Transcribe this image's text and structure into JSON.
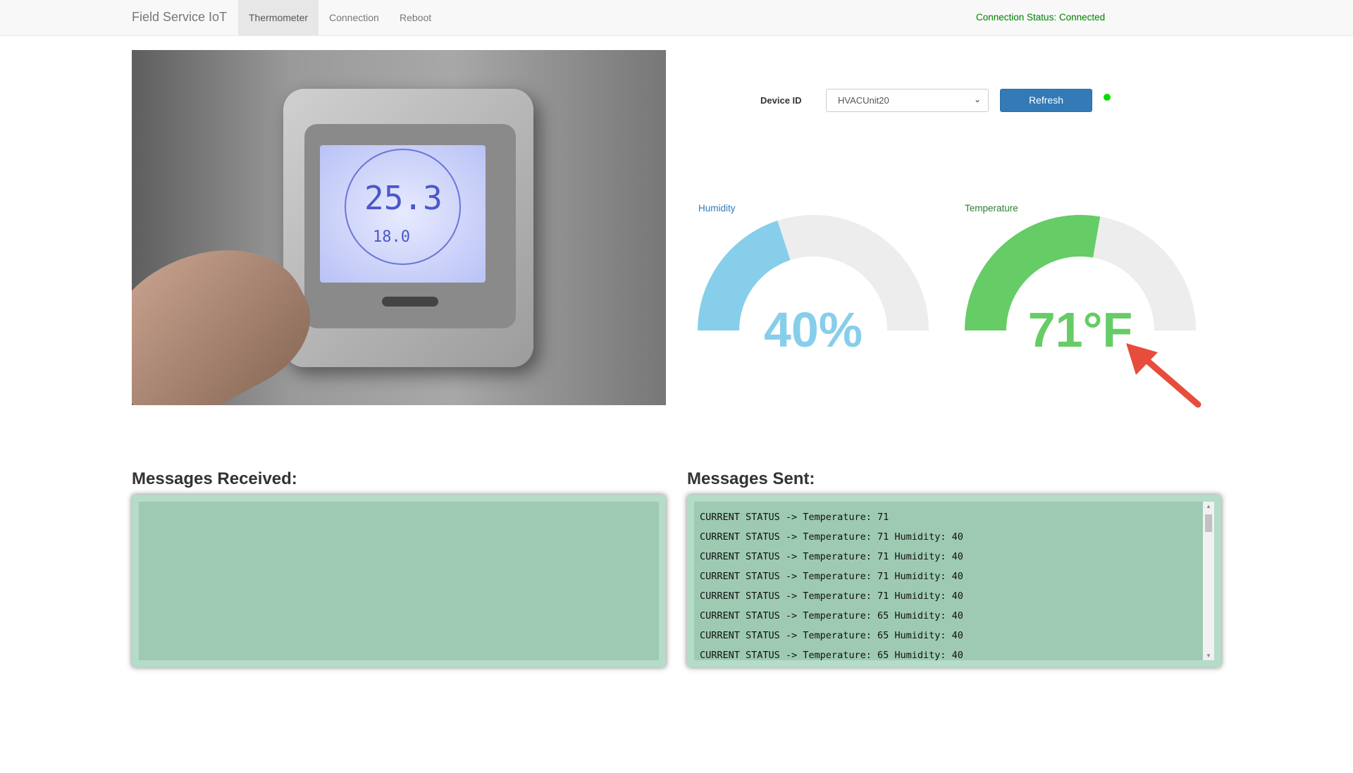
{
  "navbar": {
    "brand": "Field Service IoT",
    "tabs": [
      {
        "label": "Thermometer",
        "active": true
      },
      {
        "label": "Connection"
      },
      {
        "label": "Reboot"
      }
    ],
    "connection_status": "Connection Status: Connected"
  },
  "photo": {
    "display_main": "25.3",
    "display_set": "18.0"
  },
  "device": {
    "label": "Device ID",
    "selected": "HVACUnit20",
    "refresh_label": "Refresh",
    "indicator_color": "#00e000"
  },
  "gauges": [
    {
      "label": "Humidity",
      "value_text": "40%",
      "fill_fraction": 0.4,
      "color": "#87ceeb",
      "label_color": "#337ab7"
    },
    {
      "label": "Temperature",
      "value_text": "71°F",
      "fill_fraction": 0.555,
      "color": "#66cc66",
      "label_color": "#2e7d32"
    }
  ],
  "gauge_track_color": "#ededed",
  "annotation_arrow_color": "#e74c3c",
  "messages_received": {
    "title": "Messages Received:",
    "lines": []
  },
  "messages_sent": {
    "title": "Messages Sent:",
    "lines": [
      "CURRENT STATUS -> Temperature: 71",
      "CURRENT STATUS -> Temperature: 71 Humidity: 40",
      "CURRENT STATUS -> Temperature: 71 Humidity: 40",
      "CURRENT STATUS -> Temperature: 71 Humidity: 40",
      "CURRENT STATUS -> Temperature: 71 Humidity: 40",
      "CURRENT STATUS -> Temperature: 65 Humidity: 40",
      "CURRENT STATUS -> Temperature: 65 Humidity: 40",
      "CURRENT STATUS -> Temperature: 65 Humidity: 40"
    ]
  }
}
